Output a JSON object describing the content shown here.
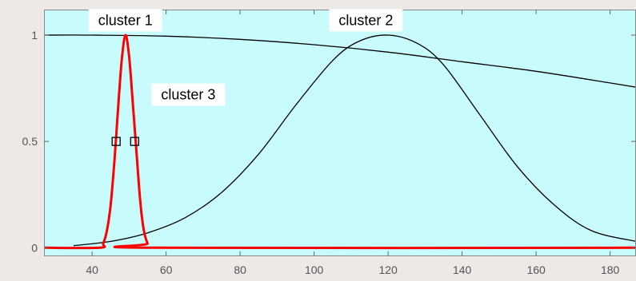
{
  "chart_data": {
    "type": "line",
    "title": "",
    "xlabel": "",
    "ylabel": "",
    "xlim": [
      27,
      187
    ],
    "ylim": [
      -0.04,
      1.12
    ],
    "xticks": [
      40,
      60,
      80,
      100,
      120,
      140,
      160,
      180
    ],
    "yticks": [
      0,
      0.5,
      1
    ],
    "ytick_labels": [
      "0",
      "0.5",
      "1"
    ],
    "grid": false,
    "legend": "none",
    "plot_background": "#c8fcfc",
    "series": [
      {
        "name": "cluster 1",
        "color": "#000000",
        "x": [
          27,
          40,
          60,
          80,
          100,
          120,
          140,
          160,
          180,
          187
        ],
        "y": [
          1.0,
          1.0,
          0.995,
          0.98,
          0.955,
          0.92,
          0.875,
          0.83,
          0.775,
          0.755
        ]
      },
      {
        "name": "cluster 2",
        "color": "#000000",
        "x": [
          35,
          45,
          55,
          65,
          75,
          85,
          95,
          105,
          112,
          120,
          128,
          135,
          145,
          155,
          165,
          175,
          187
        ],
        "y": [
          0.01,
          0.03,
          0.07,
          0.14,
          0.26,
          0.44,
          0.67,
          0.88,
          0.97,
          1.0,
          0.96,
          0.86,
          0.62,
          0.38,
          0.2,
          0.08,
          0.03
        ]
      },
      {
        "name": "cluster 3",
        "color": "#ff0000",
        "x": [
          27,
          42,
          43,
          44,
          45,
          46,
          47,
          48,
          49,
          50,
          51,
          52,
          53,
          54,
          55,
          56,
          187
        ],
        "y": [
          0,
          0,
          0.02,
          0.08,
          0.2,
          0.4,
          0.65,
          0.88,
          1.0,
          0.9,
          0.68,
          0.45,
          0.22,
          0.08,
          0.02,
          0,
          0
        ]
      }
    ],
    "markers": [
      {
        "x": 46.5,
        "y": 0.5
      },
      {
        "x": 51.5,
        "y": 0.5
      }
    ],
    "annotations": [
      {
        "text": "cluster 1",
        "x": 49,
        "y": 1.07
      },
      {
        "text": "cluster 2",
        "x": 114,
        "y": 1.07
      },
      {
        "text": "cluster 3",
        "x": 66,
        "y": 0.72
      }
    ]
  }
}
